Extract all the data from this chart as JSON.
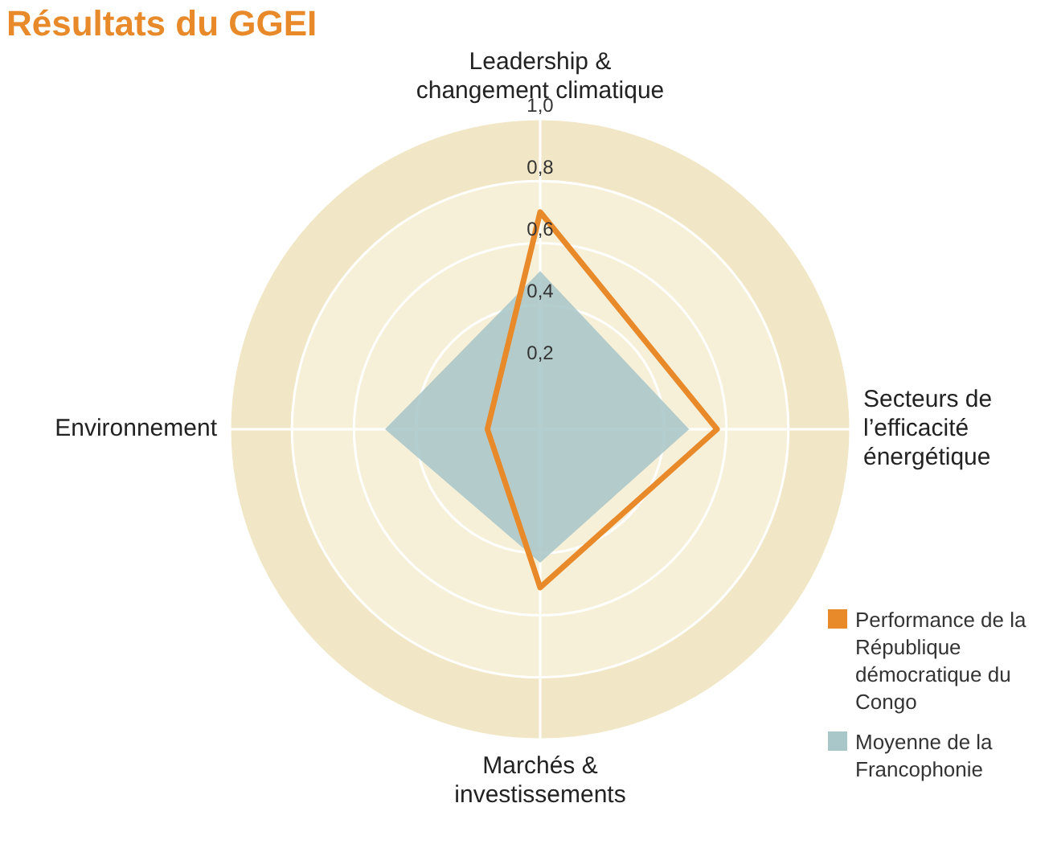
{
  "chart_data": {
    "type": "radar",
    "title": "Résultats du GGEI",
    "categories": [
      "Leadership & changement climatique",
      "Secteurs de l’efficacité énergétique",
      "Marchés & investissements",
      "Environnement"
    ],
    "series": [
      {
        "name": "Performance de la République démocratique du Congo",
        "color": "#e8892a",
        "values": [
          0.7,
          0.57,
          0.51,
          0.17
        ]
      },
      {
        "name": "Moyenne de la Francophonie",
        "color": "#a9c6c9",
        "values": [
          0.51,
          0.48,
          0.43,
          0.5
        ]
      }
    ],
    "ylim": [
      0,
      1
    ],
    "yticks": [
      {
        "value": 0.2,
        "label": "0,2"
      },
      {
        "value": 0.4,
        "label": "0,4"
      },
      {
        "value": 0.6,
        "label": "0,6"
      },
      {
        "value": 0.8,
        "label": "0,8"
      },
      {
        "value": 1,
        "label": "1,0"
      }
    ],
    "grid": true,
    "legend": "bottom right"
  }
}
